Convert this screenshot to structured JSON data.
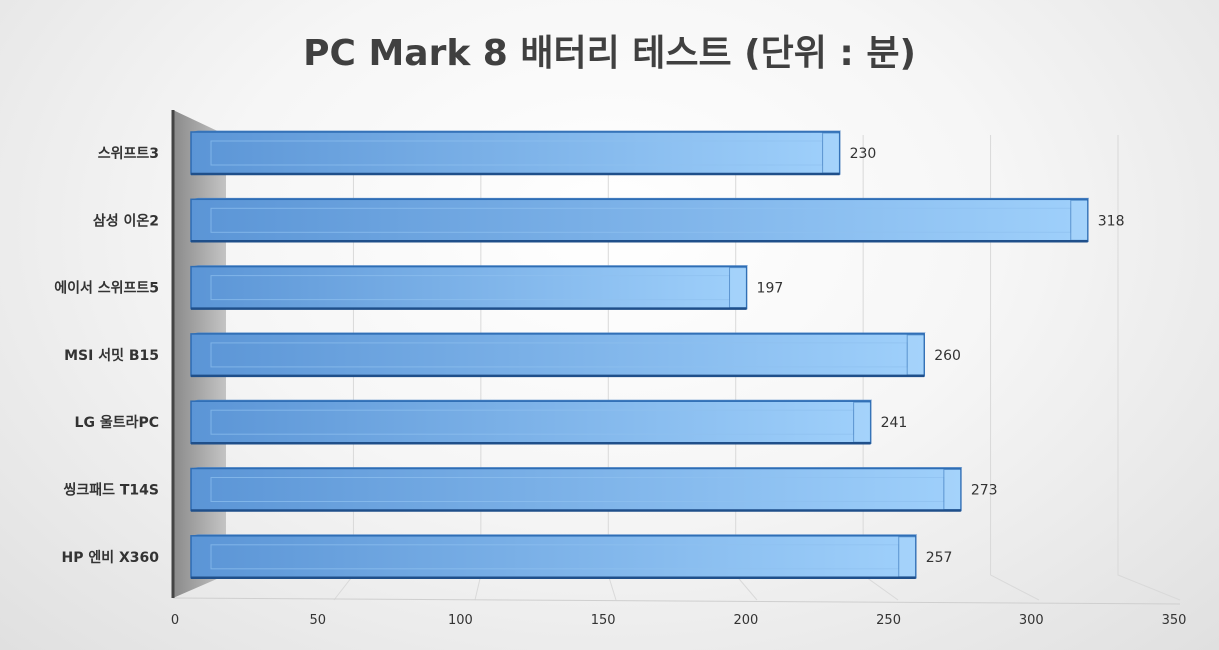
{
  "chart_data": {
    "type": "bar",
    "orientation": "horizontal",
    "title": "PC Mark 8 배터리 테스트 (단위 : 분)",
    "categories": [
      "스위프트3",
      "삼성 이온2",
      "에이서 스위프트5",
      "MSI 서밋 B15",
      "LG 울트라PC",
      "씽크패드 T14S",
      "HP 엔비 X360"
    ],
    "values": [
      230,
      318,
      197,
      260,
      241,
      273,
      257
    ],
    "x_ticks": [
      "0",
      "50",
      "100",
      "150",
      "200",
      "250",
      "300",
      "350"
    ],
    "xlim": [
      0,
      350
    ],
    "grid": true,
    "legend": "none",
    "bar_color": "#7fb6ec"
  }
}
